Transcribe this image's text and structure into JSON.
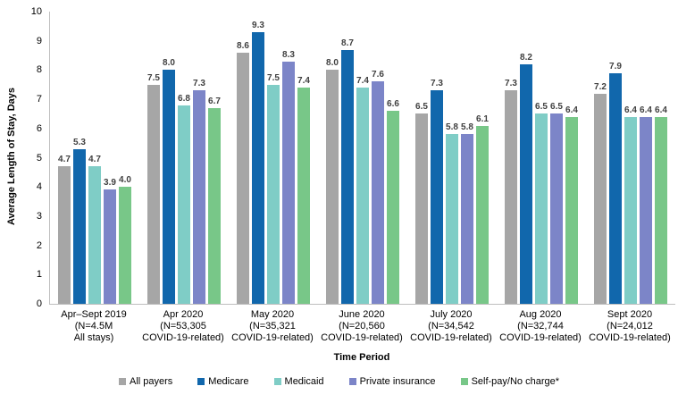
{
  "chart_data": {
    "type": "bar",
    "title": "",
    "ylabel": "Average Length of Stay, Days",
    "xlabel": "Time Period",
    "ylim": [
      0,
      10
    ],
    "ytick_step": 1,
    "grid": false,
    "legend_position": "bottom",
    "first_group_patterned": true,
    "axis_line_color": "#bfbfbf",
    "value_label_color": "#3f3f3f",
    "categories": [
      "Apr–Sept 2019\n(N=4.5M\nAll stays)",
      "Apr 2020\n(N=53,305\nCOVID-19-related)",
      "May 2020\n(N=35,321\nCOVID-19-related)",
      "June 2020\n(N=20,560\nCOVID-19-related)",
      "July 2020\n(N=34,542\nCOVID-19-related)",
      "Aug 2020\n(N=32,744\nCOVID-19-related)",
      "Sept 2020\n(N=24,012\nCOVID-19-related)"
    ],
    "series": [
      {
        "name": "All payers",
        "color": "#a6a6a6",
        "values": [
          4.7,
          7.5,
          8.6,
          8.0,
          6.5,
          7.3,
          7.2
        ]
      },
      {
        "name": "Medicare",
        "color": "#1167ac",
        "values": [
          5.3,
          8.0,
          9.3,
          8.7,
          7.3,
          8.2,
          7.9
        ]
      },
      {
        "name": "Medicaid",
        "color": "#7fcdc6",
        "values": [
          4.7,
          6.8,
          7.5,
          7.4,
          5.8,
          6.5,
          6.4
        ]
      },
      {
        "name": "Private insurance",
        "color": "#7c85c8",
        "values": [
          3.9,
          7.3,
          8.3,
          7.6,
          5.8,
          6.5,
          6.4
        ]
      },
      {
        "name": "Self-pay/No charge*",
        "color": "#78c788",
        "values": [
          4.0,
          6.7,
          7.4,
          6.6,
          6.1,
          6.4,
          6.4
        ]
      }
    ]
  }
}
